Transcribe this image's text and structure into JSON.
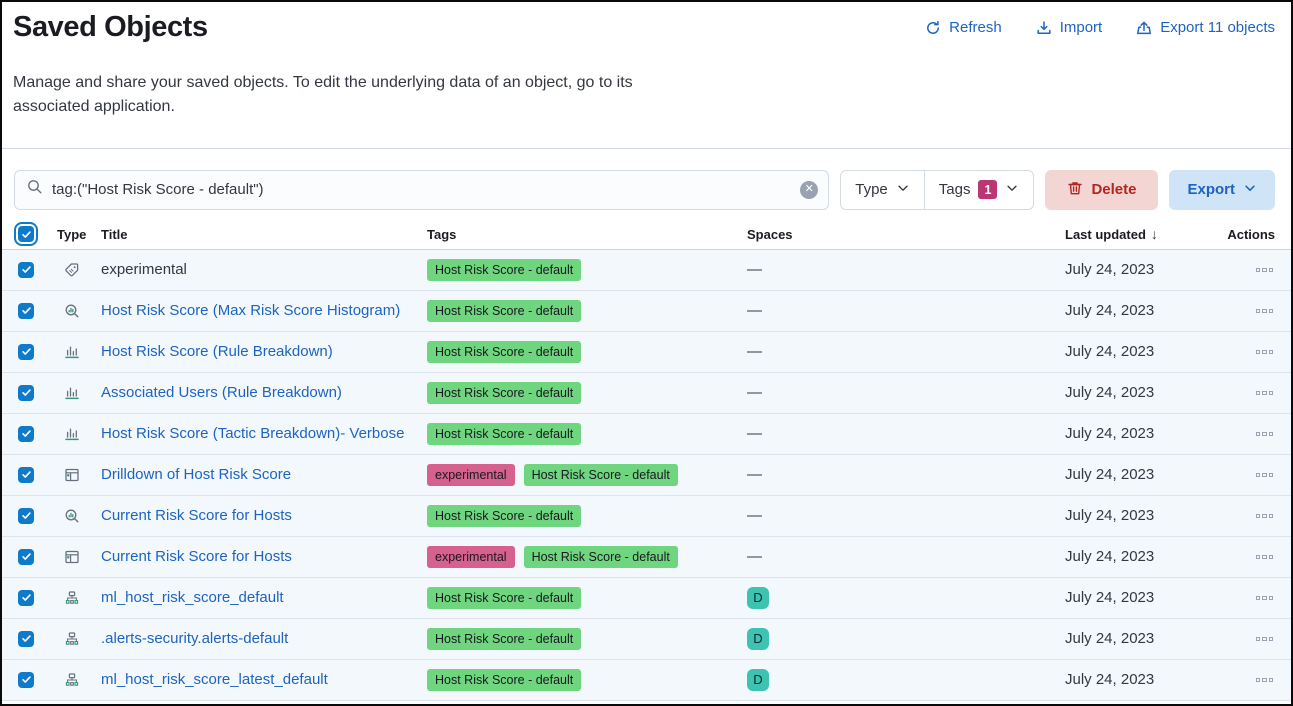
{
  "page": {
    "title": "Saved Objects",
    "subtitle": "Manage and share your saved objects. To edit the underlying data of an object, go to its associated application."
  },
  "header_actions": {
    "refresh": "Refresh",
    "import": "Import",
    "export": "Export 11 objects"
  },
  "toolbar": {
    "search_value": "tag:(\"Host Risk Score - default\")",
    "type_filter_label": "Type",
    "tags_filter_label": "Tags",
    "tags_count": "1",
    "delete_label": "Delete",
    "export_label": "Export"
  },
  "columns": {
    "type": "Type",
    "title": "Title",
    "tags": "Tags",
    "spaces": "Spaces",
    "updated": "Last updated",
    "actions": "Actions"
  },
  "tags": {
    "hrs_default": {
      "label": "Host Risk Score - default",
      "color": "#6fd57f"
    },
    "experimental": {
      "label": "experimental",
      "color": "#d5618c"
    }
  },
  "space_badge_label": "D",
  "no_space_label": "—",
  "colors": {
    "link_blue": "#1e63c2",
    "checkbox_blue": "#0e7ac9",
    "tags_count_badge": "#bd3572",
    "space_badge_teal": "#3ec2b2",
    "row_selected_bg": "#f3f8fc",
    "delete_bg": "#f3d6d4",
    "delete_text": "#b3251e",
    "export_bg": "#cfe4f6"
  },
  "rows": [
    {
      "type": "tag",
      "title": "experimental",
      "link": false,
      "tags": [
        "hrs_default"
      ],
      "space": "none",
      "updated": "July 24, 2023"
    },
    {
      "type": "lens",
      "title": "Host Risk Score (Max Risk Score Histogram)",
      "link": true,
      "tags": [
        "hrs_default"
      ],
      "space": "none",
      "updated": "July 24, 2023"
    },
    {
      "type": "visualization",
      "title": "Host Risk Score (Rule Breakdown)",
      "link": true,
      "tags": [
        "hrs_default"
      ],
      "space": "none",
      "updated": "July 24, 2023"
    },
    {
      "type": "visualization",
      "title": "Associated Users (Rule Breakdown)",
      "link": true,
      "tags": [
        "hrs_default"
      ],
      "space": "none",
      "updated": "July 24, 2023"
    },
    {
      "type": "visualization",
      "title": "Host Risk Score (Tactic Breakdown)- Verbose",
      "link": true,
      "tags": [
        "hrs_default"
      ],
      "space": "none",
      "updated": "July 24, 2023"
    },
    {
      "type": "dashboard",
      "title": "Drilldown of Host Risk Score",
      "link": true,
      "tags": [
        "experimental",
        "hrs_default"
      ],
      "space": "none",
      "updated": "July 24, 2023"
    },
    {
      "type": "lens",
      "title": "Current Risk Score for Hosts",
      "link": true,
      "tags": [
        "hrs_default"
      ],
      "space": "none",
      "updated": "July 24, 2023"
    },
    {
      "type": "dashboard",
      "title": "Current Risk Score for Hosts",
      "link": true,
      "tags": [
        "experimental",
        "hrs_default"
      ],
      "space": "none",
      "updated": "July 24, 2023"
    },
    {
      "type": "index-pattern",
      "title": "ml_host_risk_score_default",
      "link": true,
      "tags": [
        "hrs_default"
      ],
      "space": "default",
      "updated": "July 24, 2023"
    },
    {
      "type": "index-pattern",
      "title": ".alerts-security.alerts-default",
      "link": true,
      "tags": [
        "hrs_default"
      ],
      "space": "default",
      "updated": "July 24, 2023"
    },
    {
      "type": "index-pattern",
      "title": "ml_host_risk_score_latest_default",
      "link": true,
      "tags": [
        "hrs_default"
      ],
      "space": "default",
      "updated": "July 24, 2023"
    }
  ]
}
